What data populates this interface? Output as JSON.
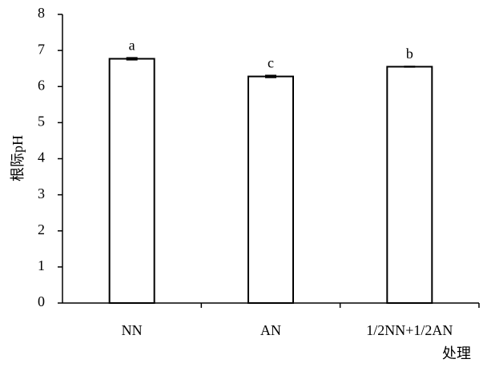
{
  "chart_data": {
    "type": "bar",
    "x_label": "处理",
    "y_label": "根际pH",
    "categories": [
      "NN",
      "AN",
      "1/2NN+1/2AN"
    ],
    "values": [
      6.77,
      6.28,
      6.55
    ],
    "errors": [
      0.03,
      0.03,
      0.01
    ],
    "annotations": [
      "a",
      "c",
      "b"
    ],
    "color": "#ffffff",
    "ylim": [
      0,
      8
    ],
    "yticks": [
      0,
      1,
      2,
      3,
      4,
      5,
      6,
      7,
      8
    ],
    "grid": false
  }
}
